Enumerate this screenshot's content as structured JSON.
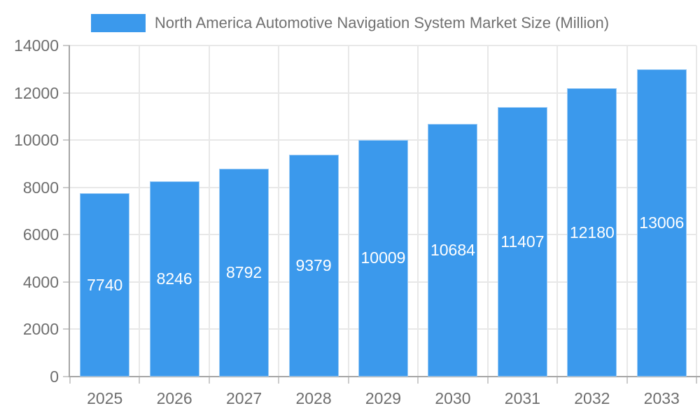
{
  "chart_data": {
    "type": "bar",
    "title": "North America Automotive Navigation System Market Size (Million)",
    "legend_position": "top",
    "categories": [
      "2025",
      "2026",
      "2027",
      "2028",
      "2029",
      "2030",
      "2031",
      "2032",
      "2033"
    ],
    "series": [
      {
        "name": "North America Automotive Navigation System Market Size (Million)",
        "values": [
          7740,
          8246,
          8792,
          9379,
          10009,
          10684,
          11407,
          12180,
          13006
        ]
      }
    ],
    "xlabel": "",
    "ylabel": "",
    "ylim": [
      0,
      14000
    ],
    "ytick_interval": 2000,
    "yticks": [
      0,
      2000,
      4000,
      6000,
      8000,
      10000,
      12000,
      14000
    ],
    "grid": true,
    "data_labels": "inside-center",
    "colors": {
      "bar": "#3B99EC",
      "bar_edge": "rgba(255,255,255,0.5)",
      "value_text": "#FFFFFF",
      "axis_text": "#6E6E6E",
      "legend_text": "#707070",
      "gridline": "#E8E8E8",
      "axis_line": "#A6A6A6",
      "tick": "#CCCCCC",
      "background": "#FFFFFF"
    }
  }
}
